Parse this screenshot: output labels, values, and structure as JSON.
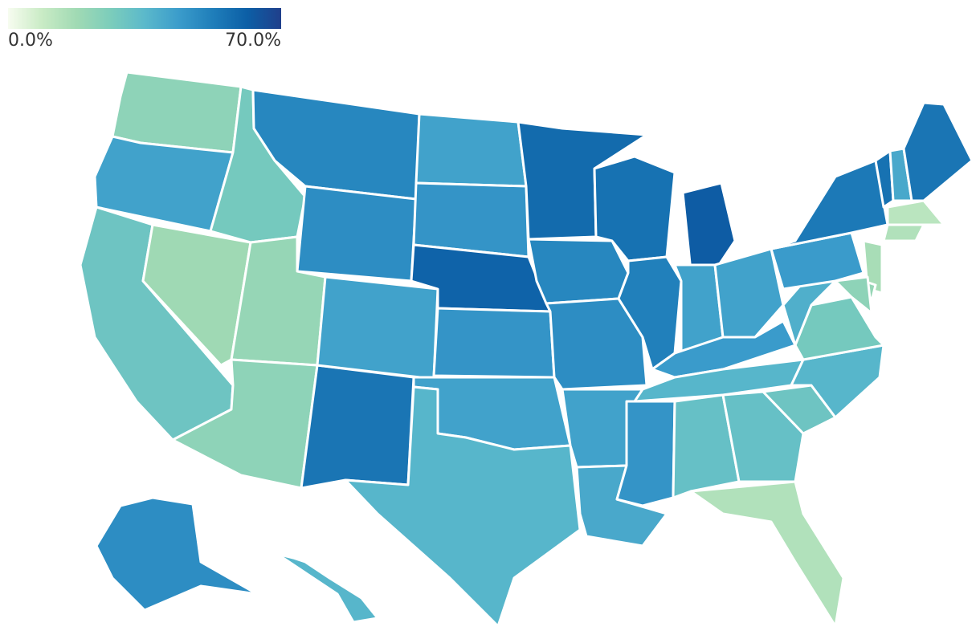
{
  "legend": {
    "min_label": "0.0%",
    "max_label": "70.0%",
    "min_value": 0.0,
    "max_value": 70.0,
    "color_stops": [
      "#f7fcf0",
      "#c9ebc5",
      "#a1dab4",
      "#7ccdbb",
      "#5bb9cb",
      "#3b9ccb",
      "#1f7eba",
      "#0c5fa6",
      "#203f8b"
    ]
  },
  "map": {
    "border_color": "#ffffff",
    "state_level_shares_percent": {
      "WA": 22,
      "OR": 42,
      "CA": 30,
      "NV": 18,
      "ID": 28,
      "MT": 50,
      "WY": 48,
      "UT": 20,
      "AZ": 22,
      "NM": 55,
      "CO": 42,
      "ND": 42,
      "SD": 46,
      "NE": 60,
      "KS": 46,
      "OK": 42,
      "TX": 36,
      "MN": 58,
      "IA": 50,
      "MO": 48,
      "AR": 42,
      "LA": 40,
      "WI": 56,
      "IL": 52,
      "MI": 62,
      "IN": 42,
      "OH": 42,
      "KY": 44,
      "TN": 36,
      "MS": 46,
      "AL": 32,
      "GA": 32,
      "FL": 14,
      "SC": 30,
      "NC": 36,
      "VA": 28,
      "WV": 38,
      "PA": 44,
      "NY": 54,
      "VT": 56,
      "NH": 40,
      "ME": 55,
      "MA": 12,
      "CT": 14,
      "NJ": 16,
      "DE": 20,
      "MD": 22,
      "AK": 48,
      "HI": 36
    }
  }
}
